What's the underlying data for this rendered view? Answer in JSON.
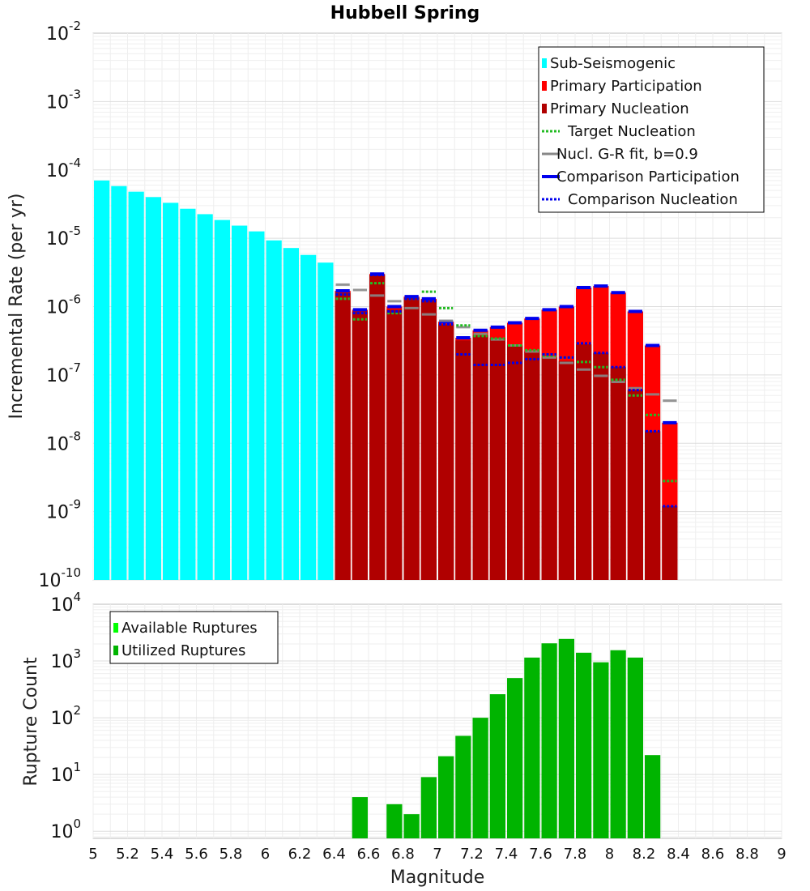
{
  "title": "Hubbell Spring",
  "xlabel": "Magnitude",
  "x_ticks": [
    "5",
    "5.2",
    "5.4",
    "5.6",
    "5.8",
    "6",
    "6.2",
    "6.4",
    "6.6",
    "6.8",
    "7",
    "7.2",
    "7.4",
    "7.6",
    "7.8",
    "8",
    "8.2",
    "8.4",
    "8.6",
    "8.8",
    "9"
  ],
  "colors": {
    "sub_seismogenic": "#00ffff",
    "primary_participation": "#ff0000",
    "primary_nucleation": "#b00000",
    "target_nucleation": "#22bb22",
    "gr_fit": "#888888",
    "comparison": "#0000ee",
    "available_ruptures": "#00ff00",
    "utilized_ruptures": "#00b400"
  },
  "chart_data": [
    {
      "type": "bar",
      "ylabel": "Incremental Rate (per yr)",
      "yscale": "log",
      "xlim": [
        5,
        9
      ],
      "ylim": [
        1e-10,
        0.01
      ],
      "y_tick_exponents": [
        "-10",
        "-9",
        "-8",
        "-7",
        "-6",
        "-5",
        "-4",
        "-3",
        "-2"
      ],
      "legend_position": "top-right",
      "legend": [
        {
          "label": "Sub-Seismogenic",
          "style": "bar",
          "color": "#00ffff"
        },
        {
          "label": "Primary Participation",
          "style": "bar",
          "color": "#ff0000"
        },
        {
          "label": "Primary Nucleation",
          "style": "bar",
          "color": "#b00000"
        },
        {
          "label": "Target Nucleation",
          "style": "dotted",
          "color": "#22bb22"
        },
        {
          "label": "Nucl. G-R fit, b=0.9",
          "style": "solid",
          "color": "#888888"
        },
        {
          "label": "Comparison Participation",
          "style": "thick",
          "color": "#0000ee"
        },
        {
          "label": "Comparison Nucleation",
          "style": "dotted",
          "color": "#0000ee"
        }
      ],
      "series": [
        {
          "name": "Sub-Seismogenic",
          "x": [
            5.05,
            5.15,
            5.25,
            5.35,
            5.45,
            5.55,
            5.65,
            5.75,
            5.85,
            5.95,
            6.05,
            6.15,
            6.25,
            6.35
          ],
          "values": [
            7e-05,
            5.8e-05,
            4.8e-05,
            4e-05,
            3.3e-05,
            2.7e-05,
            2.25e-05,
            1.85e-05,
            1.53e-05,
            1.26e-05,
            9.3e-06,
            7.2e-06,
            5.7e-06,
            4.4e-06
          ]
        },
        {
          "name": "Primary Participation",
          "x": [
            6.45,
            6.55,
            6.65,
            6.75,
            6.85,
            6.95,
            7.05,
            7.15,
            7.25,
            7.35,
            7.45,
            7.55,
            7.65,
            7.75,
            7.85,
            7.95,
            8.05,
            8.15,
            8.25,
            8.35
          ],
          "values": [
            1.7e-06,
            9e-07,
            3e-06,
            1e-06,
            1.4e-06,
            1.3e-06,
            6e-07,
            3.5e-07,
            4.5e-07,
            5e-07,
            5.8e-07,
            6.7e-07,
            9e-07,
            1e-06,
            1.9e-06,
            2e-06,
            1.6e-06,
            8.5e-07,
            2.7e-07,
            2e-08
          ]
        },
        {
          "name": "Primary Nucleation",
          "x": [
            6.45,
            6.55,
            6.65,
            6.75,
            6.85,
            6.95,
            7.05,
            7.15,
            7.25,
            7.35,
            7.45,
            7.55,
            7.65,
            7.75,
            7.85,
            7.95,
            8.05,
            8.15,
            8.25,
            8.35
          ],
          "values": [
            1.6e-06,
            8.5e-07,
            2.9e-06,
            9e-07,
            1.35e-06,
            1.25e-06,
            5.5e-07,
            3.2e-07,
            3.8e-07,
            3.5e-07,
            2.7e-07,
            2.2e-07,
            1.8e-07,
            1.6e-07,
            2.8e-07,
            2.1e-07,
            1.3e-07,
            6e-08,
            1.5e-08,
            1.2e-09
          ]
        },
        {
          "name": "Target Nucleation",
          "x": [
            6.45,
            6.55,
            6.65,
            6.75,
            6.85,
            6.95,
            7.05,
            7.15,
            7.25,
            7.35,
            7.45,
            7.55,
            7.65,
            7.75,
            7.85,
            7.95,
            8.05,
            8.15,
            8.25,
            8.35
          ],
          "values": [
            1.3e-06,
            6.5e-07,
            2.2e-06,
            8e-07,
            1.3e-06,
            1.65e-06,
            9.5e-07,
            5.3e-07,
            3.7e-07,
            3.4e-07,
            2.7e-07,
            2.3e-07,
            1.9e-07,
            1.8e-07,
            1.55e-07,
            1.3e-07,
            8.5e-08,
            5e-08,
            2.6e-08,
            2.8e-09
          ]
        },
        {
          "name": "Nucl. G-R fit, b=0.9",
          "x": [
            6.45,
            6.55,
            6.65,
            6.75,
            6.85,
            6.95,
            7.05,
            7.15,
            7.25,
            7.35,
            7.45,
            7.55,
            7.65,
            7.75,
            7.85,
            7.95,
            8.05,
            8.15,
            8.25,
            8.35
          ],
          "values": [
            2.1e-06,
            1.75e-06,
            1.45e-06,
            1.2e-06,
            9.5e-07,
            7.7e-07,
            6.2e-07,
            5e-07,
            4e-07,
            3.3e-07,
            2.7e-07,
            2.2e-07,
            1.8e-07,
            1.5e-07,
            1.2e-07,
            9.7e-08,
            7.9e-08,
            6.4e-08,
            5.2e-08,
            4.2e-08
          ]
        },
        {
          "name": "Comparison Participation",
          "x": [
            6.45,
            6.55,
            6.65,
            6.75,
            6.85,
            6.95,
            7.05,
            7.15,
            7.25,
            7.35,
            7.45,
            7.55,
            7.65,
            7.75,
            7.85,
            7.95,
            8.05,
            8.15,
            8.25,
            8.35
          ],
          "values": [
            1.7e-06,
            9e-07,
            3e-06,
            1e-06,
            1.4e-06,
            1.3e-06,
            6e-07,
            3.5e-07,
            4.5e-07,
            5e-07,
            5.8e-07,
            6.7e-07,
            9e-07,
            1e-06,
            1.9e-06,
            2e-06,
            1.6e-06,
            8.5e-07,
            2.7e-07,
            2e-08
          ]
        },
        {
          "name": "Comparison Nucleation",
          "x": [
            6.45,
            6.55,
            6.65,
            6.75,
            6.85,
            6.95,
            7.05,
            7.15,
            7.25,
            7.35,
            7.45,
            7.55,
            7.65,
            7.75,
            7.85,
            7.95,
            8.05,
            8.15,
            8.25,
            8.35
          ],
          "values": [
            1.5e-06,
            8e-07,
            2.9e-06,
            8.5e-07,
            1.3e-06,
            1.2e-06,
            5.5e-07,
            2e-07,
            1.4e-07,
            1.4e-07,
            1.5e-07,
            1.7e-07,
            2e-07,
            1.8e-07,
            2.9e-07,
            2.1e-07,
            1.3e-07,
            6e-08,
            1.5e-08,
            1.2e-09
          ]
        }
      ]
    },
    {
      "type": "bar",
      "ylabel": "Rupture Count",
      "yscale": "log",
      "xlim": [
        5,
        9
      ],
      "ylim": [
        0.75,
        10000
      ],
      "y_tick_exponents": [
        "0",
        "1",
        "2",
        "3",
        "4"
      ],
      "legend_position": "top-left",
      "legend": [
        {
          "label": "Available Ruptures",
          "style": "bar",
          "color": "#00ff00"
        },
        {
          "label": "Utilized Ruptures",
          "style": "bar",
          "color": "#00b400"
        }
      ],
      "series": [
        {
          "name": "Utilized Ruptures",
          "x": [
            6.55,
            6.75,
            6.85,
            6.95,
            7.05,
            7.15,
            7.25,
            7.35,
            7.45,
            7.55,
            7.65,
            7.75,
            7.85,
            7.95,
            8.05,
            8.15,
            8.25
          ],
          "values": [
            4,
            3,
            2,
            9,
            21,
            48,
            100,
            260,
            500,
            1150,
            2050,
            2450,
            1400,
            950,
            1550,
            1150,
            22
          ]
        }
      ]
    }
  ]
}
